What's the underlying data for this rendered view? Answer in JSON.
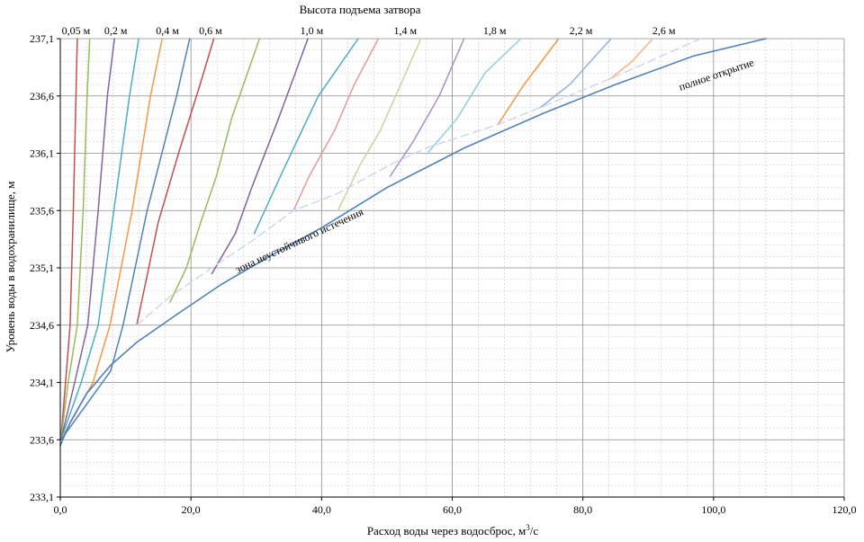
{
  "chart_data": {
    "type": "line",
    "title": "Высота подъема затвора",
    "xlabel": "Расход воды через водосброс, м³/с",
    "xlabel_main": "Расход воды через водосброс, м",
    "xlabel_sup": "3",
    "xlabel_tail": "/с",
    "ylabel": "Уровень воды в водохранилище, м",
    "xlim": [
      0,
      120
    ],
    "ylim": [
      233.1,
      237.1
    ],
    "x_ticks": [
      0,
      20,
      40,
      60,
      80,
      100,
      120
    ],
    "x_tick_labels": [
      "0,0",
      "20,0",
      "40,0",
      "60,0",
      "80,0",
      "100,0",
      "120,0"
    ],
    "y_ticks": [
      233.1,
      233.6,
      234.1,
      234.6,
      235.1,
      235.6,
      236.1,
      236.6,
      237.1
    ],
    "y_tick_labels": [
      "233,1",
      "233,6",
      "234,1",
      "234,6",
      "235,1",
      "235,6",
      "236,1",
      "236,6",
      "237,1"
    ],
    "grid": true,
    "curve_labels": [
      {
        "text": "0,05 м",
        "x": 2.4
      },
      {
        "text": "0,2 м",
        "x": 8.5
      },
      {
        "text": "0,4 м",
        "x": 16.4
      },
      {
        "text": "0,6 м",
        "x": 23.0
      },
      {
        "text": "1,0 м",
        "x": 38.5
      },
      {
        "text": "1,4 м",
        "x": 52.8
      },
      {
        "text": "1,8 м",
        "x": 66.5
      },
      {
        "text": "2,2 м",
        "x": 79.7
      },
      {
        "text": "2,6 м",
        "x": 92.4
      }
    ],
    "annotations": {
      "full_open": "полное открытие",
      "unstable_zone": "зона неустойчивого истечения"
    },
    "series": [
      {
        "name": "0,05 м",
        "color": "#C0504D",
        "points": [
          [
            0.1,
            233.6
          ],
          [
            1.5,
            234.6
          ],
          [
            2.0,
            235.6
          ],
          [
            2.4,
            236.6
          ],
          [
            2.6,
            237.1
          ]
        ]
      },
      {
        "name": "0,1 м",
        "color": "#9BBB59",
        "points": [
          [
            0.1,
            233.6
          ],
          [
            1.2,
            234.1
          ],
          [
            2.6,
            234.6
          ],
          [
            3.5,
            235.6
          ],
          [
            4.1,
            236.6
          ],
          [
            4.5,
            237.1
          ]
        ]
      },
      {
        "name": "0,2 м",
        "color": "#8064A2",
        "points": [
          [
            0.1,
            233.6
          ],
          [
            2.2,
            234.1
          ],
          [
            4.2,
            234.6
          ],
          [
            5.8,
            235.6
          ],
          [
            7.2,
            236.6
          ],
          [
            8.3,
            237.1
          ]
        ]
      },
      {
        "name": "0,3 м",
        "color": "#4BACC6",
        "points": [
          [
            0.1,
            233.6
          ],
          [
            3.2,
            234.1
          ],
          [
            5.8,
            234.6
          ],
          [
            8.2,
            235.6
          ],
          [
            10.6,
            236.6
          ],
          [
            12.0,
            237.1
          ]
        ]
      },
      {
        "name": "0,4 м",
        "color": "#F79646",
        "points": [
          [
            0.1,
            233.6
          ],
          [
            5.0,
            234.1
          ],
          [
            7.6,
            234.6
          ],
          [
            11.0,
            235.6
          ],
          [
            13.8,
            236.6
          ],
          [
            15.6,
            237.1
          ]
        ]
      },
      {
        "name": "0,5 м",
        "color": "#4F81BD",
        "points": [
          [
            0.1,
            233.6
          ],
          [
            7.7,
            234.2
          ],
          [
            9.6,
            234.6
          ],
          [
            13.3,
            235.6
          ],
          [
            17.8,
            236.6
          ],
          [
            19.8,
            237.1
          ]
        ]
      },
      {
        "name": "0,6 м",
        "color": "#C0504D",
        "points": [
          [
            11.7,
            234.6
          ],
          [
            12.8,
            234.9
          ],
          [
            15.0,
            235.5
          ],
          [
            18.1,
            236.1
          ],
          [
            21.4,
            236.7
          ],
          [
            23.5,
            237.1
          ]
        ]
      },
      {
        "name": "0,8 м",
        "color": "#9BBB59",
        "points": [
          [
            16.8,
            234.8
          ],
          [
            19.3,
            235.1
          ],
          [
            21.5,
            235.5
          ],
          [
            23.9,
            235.9
          ],
          [
            26.2,
            236.4
          ],
          [
            30.5,
            237.1
          ]
        ]
      },
      {
        "name": "1,0 м",
        "color": "#8064A2",
        "points": [
          [
            23.2,
            235.05
          ],
          [
            26.8,
            235.4
          ],
          [
            29.3,
            235.8
          ],
          [
            33.4,
            236.4
          ],
          [
            37.9,
            237.1
          ]
        ]
      },
      {
        "name": "1,2 м",
        "color": "#4BACC6",
        "points": [
          [
            29.7,
            235.4
          ],
          [
            33.7,
            235.9
          ],
          [
            37.0,
            236.3
          ],
          [
            39.5,
            236.6
          ],
          [
            45.6,
            237.1
          ]
        ]
      },
      {
        "name": "1,4 м",
        "color": "#E6989B",
        "points": [
          [
            35.7,
            235.6
          ],
          [
            38.1,
            235.9
          ],
          [
            42.0,
            236.3
          ],
          [
            45.0,
            236.7
          ],
          [
            48.7,
            237.1
          ]
        ]
      },
      {
        "name": "1,6 м",
        "color": "#C3D69B",
        "points": [
          [
            42.5,
            235.6
          ],
          [
            45.9,
            236.0
          ],
          [
            49.0,
            236.3
          ],
          [
            55.2,
            237.1
          ]
        ]
      },
      {
        "name": "1,8 м",
        "color": "#A78FC6",
        "points": [
          [
            50.5,
            235.9
          ],
          [
            54.0,
            236.2
          ],
          [
            58.0,
            236.6
          ],
          [
            61.8,
            237.1
          ]
        ]
      },
      {
        "name": "2,0 м",
        "color": "#92CDDC",
        "points": [
          [
            56.2,
            236.1
          ],
          [
            60.7,
            236.4
          ],
          [
            65.0,
            236.8
          ],
          [
            70.5,
            237.1
          ]
        ]
      },
      {
        "name": "2,2 м",
        "color": "#F79646",
        "points": [
          [
            67.0,
            236.35
          ],
          [
            71.0,
            236.7
          ],
          [
            76.3,
            237.1
          ]
        ]
      },
      {
        "name": "2,4 м",
        "color": "#93B3DA",
        "points": [
          [
            73.5,
            236.5
          ],
          [
            78.0,
            236.7
          ],
          [
            84.3,
            237.1
          ]
        ]
      },
      {
        "name": "2,6 м",
        "color": "#FAB484",
        "points": [
          [
            84.2,
            236.75
          ],
          [
            87.5,
            236.9
          ],
          [
            90.7,
            237.1
          ]
        ]
      },
      {
        "name": "полное открытие",
        "color": "#4F81BD",
        "width": 1.6,
        "points": [
          [
            0.0,
            233.55
          ],
          [
            1.5,
            233.75
          ],
          [
            4.0,
            234.0
          ],
          [
            7.7,
            234.25
          ],
          [
            11.7,
            234.45
          ],
          [
            18.0,
            234.7
          ],
          [
            24.5,
            234.95
          ],
          [
            32.0,
            235.2
          ],
          [
            40.0,
            235.45
          ],
          [
            50.0,
            235.8
          ],
          [
            62.0,
            236.15
          ],
          [
            74.0,
            236.45
          ],
          [
            85.0,
            236.7
          ],
          [
            97.0,
            236.95
          ],
          [
            108.0,
            237.1
          ]
        ]
      },
      {
        "name": "зона неустойчивого истечения",
        "color": "#C9D6EE",
        "dash": true,
        "width": 1.4,
        "points": [
          [
            11.7,
            234.6
          ],
          [
            16.8,
            234.85
          ],
          [
            23.2,
            235.1
          ],
          [
            29.7,
            235.35
          ],
          [
            35.7,
            235.6
          ],
          [
            42.5,
            235.75
          ],
          [
            50.5,
            236.0
          ],
          [
            56.2,
            236.15
          ],
          [
            67.0,
            236.35
          ],
          [
            73.5,
            236.5
          ],
          [
            84.2,
            236.75
          ],
          [
            98.0,
            237.1
          ]
        ]
      }
    ]
  }
}
